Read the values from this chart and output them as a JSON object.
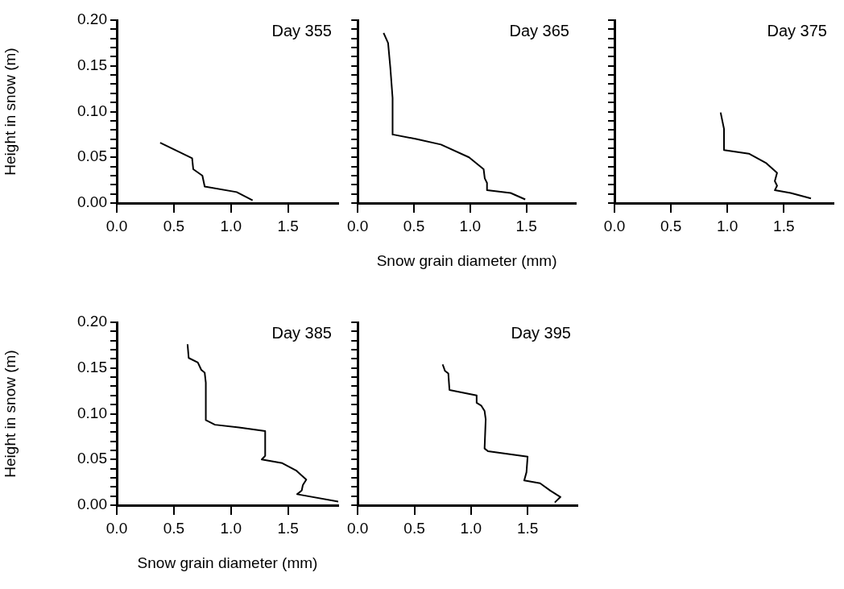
{
  "chart_data": [
    {
      "type": "line",
      "title": "Day 355",
      "ylabel": "Height in snow (m)",
      "marker": "none",
      "xlim": [
        0,
        1.94
      ],
      "ylim": [
        0,
        0.2
      ],
      "xticks": [
        {
          "value": 0,
          "label": "0.0"
        },
        {
          "value": 0.5,
          "label": "0.5"
        },
        {
          "value": 1,
          "label": "1.0"
        },
        {
          "value": 1.5,
          "label": "1.5"
        }
      ],
      "yticks": [
        {
          "value": 0,
          "label": "0.00"
        },
        {
          "value": 0.01,
          "label": null
        },
        {
          "value": 0.02,
          "label": null
        },
        {
          "value": 0.03,
          "label": null
        },
        {
          "value": 0.04,
          "label": null
        },
        {
          "value": 0.05,
          "label": "0.05"
        },
        {
          "value": 0.06,
          "label": null
        },
        {
          "value": 0.07,
          "label": null
        },
        {
          "value": 0.08,
          "label": null
        },
        {
          "value": 0.09,
          "label": null
        },
        {
          "value": 0.1,
          "label": "0.10"
        },
        {
          "value": 0.11,
          "label": null
        },
        {
          "value": 0.12,
          "label": null
        },
        {
          "value": 0.13,
          "label": null
        },
        {
          "value": 0.14,
          "label": null
        },
        {
          "value": 0.15,
          "label": "0.15"
        },
        {
          "value": 0.16,
          "label": null
        },
        {
          "value": 0.17,
          "label": null
        },
        {
          "value": 0.18,
          "label": null
        },
        {
          "value": 0.19,
          "label": null
        },
        {
          "value": 0.2,
          "label": "0.20"
        }
      ],
      "series": [
        {
          "color": "#000000",
          "x": [
            0.38,
            0.66,
            0.67,
            0.75,
            0.77,
            1.05,
            1.19
          ],
          "values": [
            0.066,
            0.049,
            0.037,
            0.03,
            0.018,
            0.012,
            0.003
          ]
        }
      ]
    },
    {
      "type": "line",
      "title": "Day 365",
      "xlabel": "Snow grain diameter (mm)",
      "marker": "none",
      "tick_labels": "x",
      "xlim": [
        0,
        1.94
      ],
      "ylim": [
        0,
        0.2
      ],
      "xticks": [
        {
          "value": 0,
          "label": "0.0"
        },
        {
          "value": 0.5,
          "label": "0.5"
        },
        {
          "value": 1,
          "label": "1.0"
        },
        {
          "value": 1.5,
          "label": "1.5"
        }
      ],
      "yticks": [
        {
          "value": 0,
          "label": null
        },
        {
          "value": 0.01,
          "label": null
        },
        {
          "value": 0.02,
          "label": null
        },
        {
          "value": 0.03,
          "label": null
        },
        {
          "value": 0.04,
          "label": null
        },
        {
          "value": 0.05,
          "label": null
        },
        {
          "value": 0.06,
          "label": null
        },
        {
          "value": 0.07,
          "label": null
        },
        {
          "value": 0.08,
          "label": null
        },
        {
          "value": 0.09,
          "label": null
        },
        {
          "value": 0.1,
          "label": null
        },
        {
          "value": 0.11,
          "label": null
        },
        {
          "value": 0.12,
          "label": null
        },
        {
          "value": 0.13,
          "label": null
        },
        {
          "value": 0.14,
          "label": null
        },
        {
          "value": 0.15,
          "label": null
        },
        {
          "value": 0.16,
          "label": null
        },
        {
          "value": 0.17,
          "label": null
        },
        {
          "value": 0.18,
          "label": null
        },
        {
          "value": 0.19,
          "label": null
        },
        {
          "value": 0.2,
          "label": null
        }
      ],
      "series": [
        {
          "color": "#000000",
          "x": [
            0.23,
            0.27,
            0.29,
            0.31,
            0.31,
            0.52,
            0.74,
            0.99,
            1.12,
            1.13,
            1.15,
            1.15,
            1.36,
            1.49
          ],
          "values": [
            0.186,
            0.175,
            0.148,
            0.115,
            0.075,
            0.07,
            0.064,
            0.05,
            0.037,
            0.027,
            0.022,
            0.014,
            0.011,
            0.004
          ]
        }
      ]
    },
    {
      "type": "line",
      "title": "Day 375",
      "marker": "none",
      "tick_labels": "x",
      "xlim": [
        0,
        1.94
      ],
      "ylim": [
        0,
        0.2
      ],
      "xticks": [
        {
          "value": 0,
          "label": "0.0"
        },
        {
          "value": 0.5,
          "label": "0.5"
        },
        {
          "value": 1,
          "label": "1.0"
        },
        {
          "value": 1.5,
          "label": "1.5"
        }
      ],
      "yticks": [
        {
          "value": 0,
          "label": null
        },
        {
          "value": 0.01,
          "label": null
        },
        {
          "value": 0.02,
          "label": null
        },
        {
          "value": 0.03,
          "label": null
        },
        {
          "value": 0.04,
          "label": null
        },
        {
          "value": 0.05,
          "label": null
        },
        {
          "value": 0.06,
          "label": null
        },
        {
          "value": 0.07,
          "label": null
        },
        {
          "value": 0.08,
          "label": null
        },
        {
          "value": 0.09,
          "label": null
        },
        {
          "value": 0.1,
          "label": null
        },
        {
          "value": 0.11,
          "label": null
        },
        {
          "value": 0.12,
          "label": null
        },
        {
          "value": 0.13,
          "label": null
        },
        {
          "value": 0.14,
          "label": null
        },
        {
          "value": 0.15,
          "label": null
        },
        {
          "value": 0.16,
          "label": null
        },
        {
          "value": 0.17,
          "label": null
        },
        {
          "value": 0.18,
          "label": null
        },
        {
          "value": 0.19,
          "label": null
        },
        {
          "value": 0.2,
          "label": null
        }
      ],
      "series": [
        {
          "color": "#000000",
          "x": [
            0.94,
            0.97,
            0.97,
            1.19,
            1.34,
            1.44,
            1.42,
            1.44,
            1.42,
            1.56,
            1.74
          ],
          "values": [
            0.099,
            0.081,
            0.058,
            0.054,
            0.044,
            0.033,
            0.024,
            0.019,
            0.014,
            0.011,
            0.005
          ]
        }
      ]
    },
    {
      "type": "line",
      "title": "Day 385",
      "ylabel": "Height in snow (m)",
      "xlabel": "Snow grain diameter (mm)",
      "marker": "none",
      "xlim": [
        0,
        1.94
      ],
      "ylim": [
        0,
        0.2
      ],
      "xticks": [
        {
          "value": 0,
          "label": "0.0"
        },
        {
          "value": 0.5,
          "label": "0.5"
        },
        {
          "value": 1,
          "label": "1.0"
        },
        {
          "value": 1.5,
          "label": "1.5"
        }
      ],
      "yticks": [
        {
          "value": 0,
          "label": "0.00"
        },
        {
          "value": 0.01,
          "label": null
        },
        {
          "value": 0.02,
          "label": null
        },
        {
          "value": 0.03,
          "label": null
        },
        {
          "value": 0.04,
          "label": null
        },
        {
          "value": 0.05,
          "label": "0.05"
        },
        {
          "value": 0.06,
          "label": null
        },
        {
          "value": 0.07,
          "label": null
        },
        {
          "value": 0.08,
          "label": null
        },
        {
          "value": 0.09,
          "label": null
        },
        {
          "value": 0.1,
          "label": "0.10"
        },
        {
          "value": 0.11,
          "label": null
        },
        {
          "value": 0.12,
          "label": null
        },
        {
          "value": 0.13,
          "label": null
        },
        {
          "value": 0.14,
          "label": null
        },
        {
          "value": 0.15,
          "label": "0.15"
        },
        {
          "value": 0.16,
          "label": null
        },
        {
          "value": 0.17,
          "label": null
        },
        {
          "value": 0.18,
          "label": null
        },
        {
          "value": 0.19,
          "label": null
        },
        {
          "value": 0.2,
          "label": "0.20"
        }
      ],
      "series": [
        {
          "color": "#000000",
          "x": [
            0.62,
            0.63,
            0.71,
            0.74,
            0.77,
            0.78,
            0.78,
            0.86,
            1.07,
            1.3,
            1.3,
            1.27,
            1.45,
            1.57,
            1.66,
            1.63,
            1.62,
            1.58,
            1.94
          ],
          "values": [
            0.176,
            0.161,
            0.156,
            0.148,
            0.145,
            0.134,
            0.093,
            0.088,
            0.085,
            0.081,
            0.054,
            0.05,
            0.046,
            0.038,
            0.028,
            0.022,
            0.016,
            0.012,
            0.004
          ]
        }
      ]
    },
    {
      "type": "line",
      "title": "Day 395",
      "marker": "none",
      "tick_labels": "x",
      "xlim": [
        0,
        1.94
      ],
      "ylim": [
        0,
        0.2
      ],
      "xticks": [
        {
          "value": 0,
          "label": "0.0"
        },
        {
          "value": 0.5,
          "label": "0.5"
        },
        {
          "value": 1,
          "label": "1.0"
        },
        {
          "value": 1.5,
          "label": "1.5"
        }
      ],
      "yticks": [
        {
          "value": 0,
          "label": null
        },
        {
          "value": 0.01,
          "label": null
        },
        {
          "value": 0.02,
          "label": null
        },
        {
          "value": 0.03,
          "label": null
        },
        {
          "value": 0.04,
          "label": null
        },
        {
          "value": 0.05,
          "label": null
        },
        {
          "value": 0.06,
          "label": null
        },
        {
          "value": 0.07,
          "label": null
        },
        {
          "value": 0.08,
          "label": null
        },
        {
          "value": 0.09,
          "label": null
        },
        {
          "value": 0.1,
          "label": null
        },
        {
          "value": 0.11,
          "label": null
        },
        {
          "value": 0.12,
          "label": null
        },
        {
          "value": 0.13,
          "label": null
        },
        {
          "value": 0.14,
          "label": null
        },
        {
          "value": 0.15,
          "label": null
        },
        {
          "value": 0.16,
          "label": null
        },
        {
          "value": 0.17,
          "label": null
        },
        {
          "value": 0.18,
          "label": null
        },
        {
          "value": 0.19,
          "label": null
        },
        {
          "value": 0.2,
          "label": null
        }
      ],
      "series": [
        {
          "color": "#000000",
          "x": [
            0.75,
            0.77,
            0.8,
            0.81,
            1.05,
            1.05,
            1.09,
            1.12,
            1.13,
            1.12,
            1.15,
            1.5,
            1.49,
            1.47,
            1.61,
            1.7,
            1.79,
            1.74
          ],
          "values": [
            0.154,
            0.147,
            0.144,
            0.126,
            0.12,
            0.112,
            0.109,
            0.103,
            0.094,
            0.062,
            0.059,
            0.053,
            0.036,
            0.027,
            0.024,
            0.016,
            0.009,
            0.003
          ]
        }
      ]
    }
  ]
}
